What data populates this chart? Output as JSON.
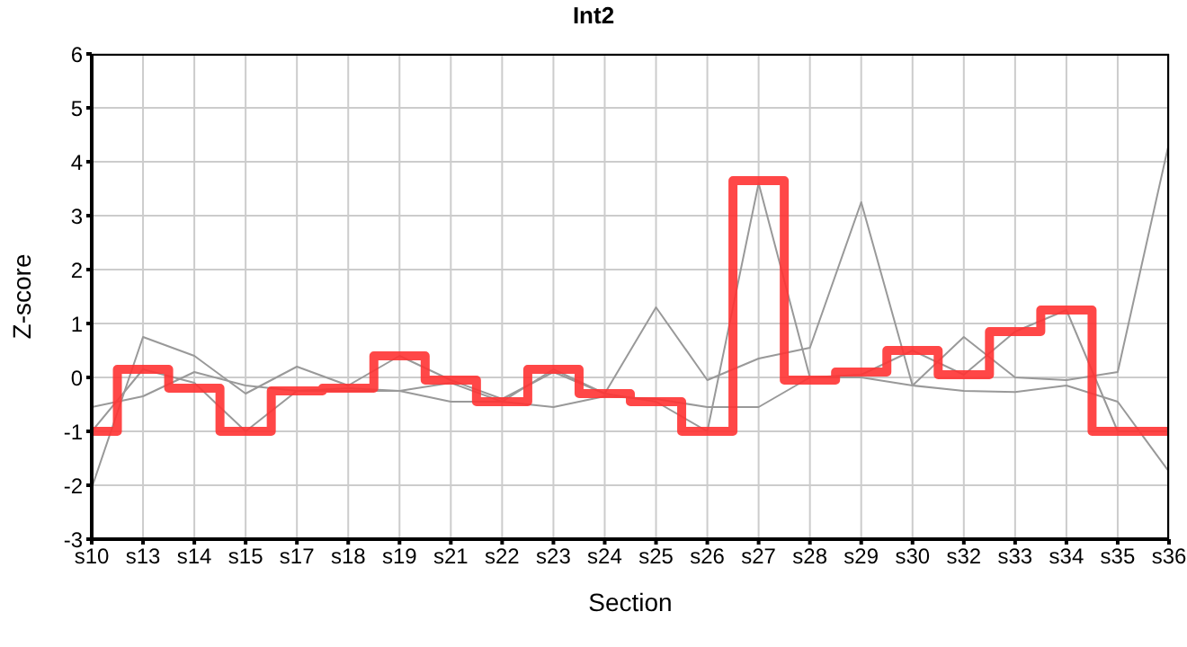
{
  "chart_data": {
    "type": "line",
    "title": "Int2",
    "xlabel": "Section",
    "ylabel": "Z-score",
    "categories": [
      "s10",
      "s13",
      "s14",
      "s15",
      "s17",
      "s18",
      "s19",
      "s21",
      "s22",
      "s23",
      "s24",
      "s25",
      "s26",
      "s27",
      "s28",
      "s29",
      "s30",
      "s32",
      "s33",
      "s34",
      "s35",
      "s36"
    ],
    "series": [
      {
        "type": "line",
        "color": "#999999",
        "values": [
          -2.05,
          0.75,
          0.4,
          -0.3,
          0.2,
          -0.15,
          0.4,
          -0.05,
          -0.4,
          0.1,
          -0.3,
          1.3,
          -0.05,
          0.35,
          0.55,
          3.25,
          -0.15,
          0.75,
          0.0,
          -0.05,
          0.1,
          4.35
        ]
      },
      {
        "type": "line",
        "color": "#999999",
        "values": [
          -1.0,
          0.15,
          -0.1,
          -1.0,
          -0.25,
          -0.2,
          -0.25,
          -0.1,
          -0.45,
          0.15,
          -0.3,
          -0.45,
          -1.0,
          3.6,
          0.0,
          0.05,
          0.5,
          0.05,
          0.85,
          1.25,
          -1.0,
          -1.0
        ]
      },
      {
        "type": "line",
        "color": "#999999",
        "values": [
          -0.55,
          -0.35,
          0.1,
          -0.15,
          -0.25,
          -0.25,
          -0.25,
          -0.45,
          -0.45,
          -0.55,
          -0.35,
          -0.4,
          -0.55,
          -0.55,
          0.0,
          0.0,
          -0.15,
          -0.25,
          -0.27,
          -0.15,
          -0.45,
          -1.75
        ]
      },
      {
        "type": "step",
        "color": "#ff3333",
        "values": [
          -1.0,
          0.15,
          -0.2,
          -1.0,
          -0.25,
          -0.2,
          0.4,
          -0.05,
          -0.45,
          0.15,
          -0.3,
          -0.45,
          -1.0,
          3.65,
          -0.05,
          0.1,
          0.5,
          0.05,
          0.85,
          1.25,
          -1.0,
          -1.0
        ]
      }
    ],
    "ylim": [
      -3,
      6
    ],
    "yticks": [
      -3,
      -2,
      -1,
      0,
      1,
      2,
      3,
      4,
      5,
      6
    ],
    "grid": true,
    "legend": false,
    "marker": "none",
    "line_style": "solid"
  }
}
